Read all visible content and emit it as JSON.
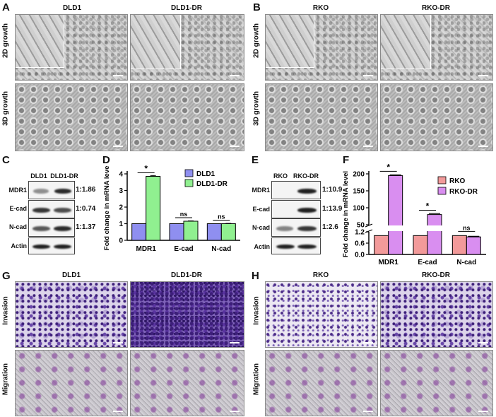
{
  "panels": {
    "A": {
      "letter": "A",
      "cols": [
        "DLD1",
        "DLD1-DR"
      ],
      "rows": [
        "2D growth",
        "3D growth"
      ]
    },
    "B": {
      "letter": "B",
      "cols": [
        "RKO",
        "RKO-DR"
      ],
      "rows": [
        "2D growth",
        "3D growth"
      ]
    },
    "C": {
      "letter": "C",
      "cols": [
        "DLD1",
        "DLD1-DR"
      ],
      "rows": [
        "MDR1",
        "E-cad",
        "N-cad",
        "Actin"
      ],
      "ratios": [
        "1:1.86",
        "1:0.74",
        "1:1.37"
      ]
    },
    "D": {
      "letter": "D"
    },
    "E": {
      "letter": "E",
      "cols": [
        "RKO",
        "RKO-DR"
      ],
      "rows": [
        "MDR1",
        "E-cad",
        "N-cad",
        "Actin"
      ],
      "ratios": [
        "1:10.9",
        "1:13.9",
        "1:2.6"
      ]
    },
    "F": {
      "letter": "F"
    },
    "G": {
      "letter": "G",
      "cols": [
        "DLD1",
        "DLD1-DR"
      ],
      "rows": [
        "Invasion",
        "Migration"
      ]
    },
    "H": {
      "letter": "H",
      "cols": [
        "RKO",
        "RKO-DR"
      ],
      "rows": [
        "Invasion",
        "Migration"
      ]
    }
  },
  "chart_data": [
    {
      "panel": "D",
      "type": "bar",
      "categories": [
        "MDR1",
        "E-cad",
        "N-cad"
      ],
      "series": [
        {
          "name": "DLD1",
          "values": [
            1.0,
            1.0,
            1.0
          ],
          "color": "#8f8ff0"
        },
        {
          "name": "DLD1-DR",
          "values": [
            3.85,
            1.15,
            1.0
          ],
          "color": "#90f090"
        }
      ],
      "error": [
        [
          0,
          0,
          0
        ],
        [
          0.05,
          0.02,
          0.02
        ]
      ],
      "ylabel": "Fold change in mRNA level",
      "ylim": [
        0,
        4
      ],
      "yticks": [
        "0",
        "1",
        "2",
        "3",
        "4"
      ],
      "ytick_values": [
        0,
        1,
        2,
        3,
        4
      ],
      "annotations": [
        "*",
        "ns",
        "ns"
      ],
      "legend": "top-right"
    },
    {
      "panel": "F",
      "type": "bar",
      "categories": [
        "MDR1",
        "E-cad",
        "N-cad"
      ],
      "series": [
        {
          "name": "RKO",
          "values": [
            1.0,
            1.0,
            1.0
          ],
          "color": "#f29a9a"
        },
        {
          "name": "RKO-DR",
          "values": [
            195,
            80,
            0.93
          ],
          "color": "#d98ef0"
        }
      ],
      "error": [
        [
          0,
          0,
          0
        ],
        [
          2,
          3,
          0.03
        ]
      ],
      "ylabel": "Fold change in mRNA level",
      "ylim_lower": [
        0,
        1.2
      ],
      "ylim_upper": [
        50,
        200
      ],
      "yticks": [
        "0.0",
        "0.6",
        "1.2",
        "50",
        "100",
        "150",
        "200"
      ],
      "ytick_values": [
        0,
        0.6,
        1.2,
        50,
        100,
        150,
        200
      ],
      "axis_break": true,
      "annotations": [
        "*",
        "*",
        "ns"
      ],
      "legend": "top-right"
    }
  ]
}
